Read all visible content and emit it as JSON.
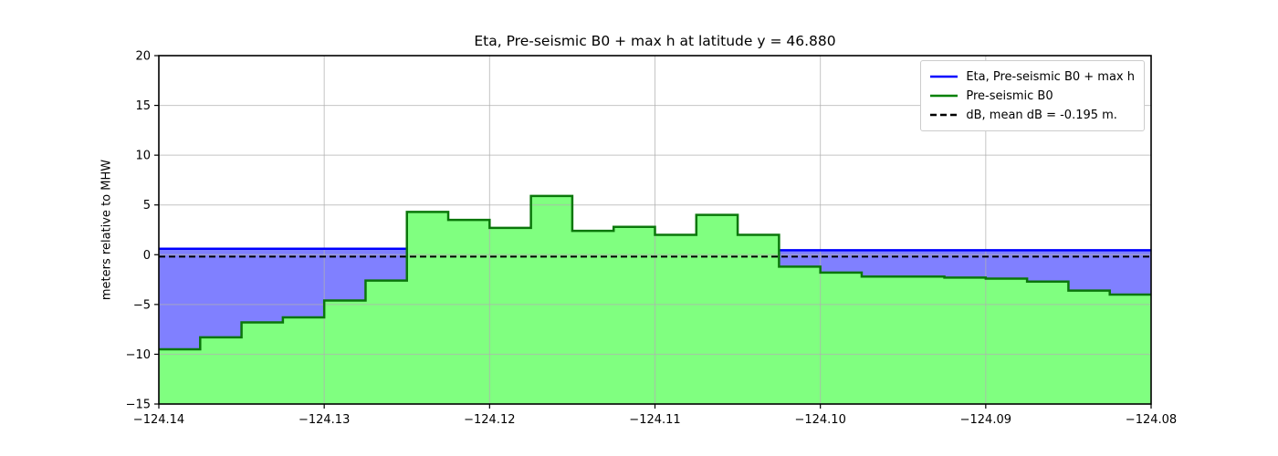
{
  "chart_data": {
    "type": "area",
    "title": "Eta, Pre-seismic B0 + max h at latitude y = 46.880",
    "xlabel": "",
    "ylabel": "meters relative to MHW",
    "xlim": [
      -124.14,
      -124.08
    ],
    "ylim": [
      -15,
      20
    ],
    "grid": true,
    "xtick_values": [
      -124.14,
      -124.13,
      -124.12,
      -124.11,
      -124.1,
      -124.09,
      -124.08
    ],
    "xtick_labels": [
      "−124.14",
      "−124.13",
      "−124.12",
      "−124.11",
      "−124.10",
      "−124.09",
      "−124.08"
    ],
    "ytick_values": [
      20,
      15,
      10,
      5,
      0,
      -5,
      -10,
      -15
    ],
    "ytick_labels": [
      "20",
      "15",
      "10",
      "5",
      "0",
      "−5",
      "−10",
      "−15"
    ],
    "x_edges": [
      -124.14,
      -124.1375,
      -124.135,
      -124.1325,
      -124.13,
      -124.1275,
      -124.125,
      -124.1225,
      -124.12,
      -124.1175,
      -124.115,
      -124.1125,
      -124.11,
      -124.1075,
      -124.105,
      -124.1025,
      -124.1,
      -124.0975,
      -124.095,
      -124.0925,
      -124.09,
      -124.0875,
      -124.085,
      -124.0825,
      -124.08
    ],
    "b0_step_values": [
      -9.5,
      -8.3,
      -6.8,
      -6.3,
      -4.6,
      -2.6,
      4.3,
      3.5,
      2.7,
      5.9,
      2.4,
      2.8,
      2.0,
      4.0,
      2.0,
      -1.2,
      -1.8,
      -2.2,
      -2.2,
      -2.3,
      -2.4,
      -2.7,
      -3.6,
      -4.0
    ],
    "eta_segments": [
      {
        "x0": -124.14,
        "x1": -124.125,
        "value": 0.6
      },
      {
        "x0": -124.1025,
        "x1": -124.08,
        "value": 0.45
      }
    ],
    "db_line_value": -0.195,
    "colors": {
      "eta_line": "#0000ff",
      "eta_fill": "#8080ff",
      "b0_line": "#0a770a",
      "b0_fill": "#80ff80",
      "db_line": "#000000",
      "grid": "#b0b0b0",
      "frame": "#000000"
    },
    "legend": {
      "position": "upper right",
      "items": [
        {
          "label": "Eta, Pre-seismic B0 + max h",
          "color": "#0000ff",
          "dash": null
        },
        {
          "label": "Pre-seismic B0",
          "color": "#008000",
          "dash": null
        },
        {
          "label": "dB, mean dB = -0.195 m.",
          "color": "#000000",
          "dash": [
            7,
            4
          ]
        }
      ]
    }
  }
}
